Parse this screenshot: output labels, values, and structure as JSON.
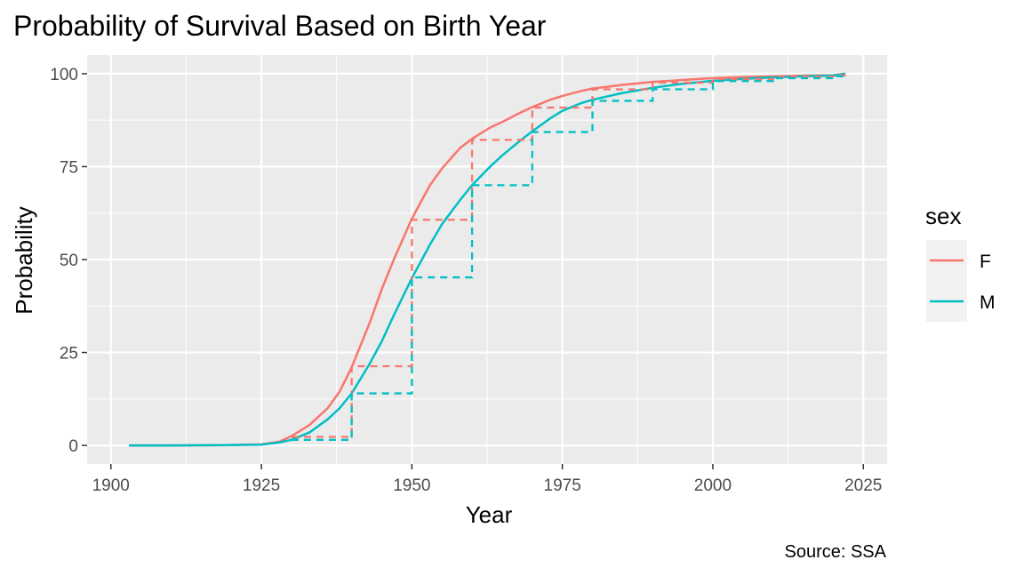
{
  "chart_data": {
    "type": "line",
    "title": "Probability of Survival Based on Birth Year",
    "xlabel": "Year",
    "ylabel": "Probability",
    "caption": "Source: SSA",
    "xlim": [
      1900,
      2025
    ],
    "ylim": [
      0,
      100
    ],
    "x_ticks": [
      1900,
      1925,
      1950,
      1975,
      2000,
      2025
    ],
    "y_ticks": [
      0,
      25,
      50,
      75,
      100
    ],
    "grid": true,
    "legend": {
      "title": "sex",
      "position": "right"
    },
    "series": [
      {
        "name": "F",
        "color": "#F8766D",
        "line": "solid",
        "x": [
          1903,
          1910,
          1920,
          1925,
          1928,
          1930,
          1933,
          1936,
          1938,
          1940,
          1943,
          1945,
          1947,
          1950,
          1953,
          1955,
          1958,
          1960,
          1963,
          1965,
          1968,
          1970,
          1973,
          1975,
          1978,
          1980,
          1985,
          1990,
          1995,
          2000,
          2005,
          2010,
          2015,
          2020,
          2022
        ],
        "y": [
          0,
          0,
          0.1,
          0.3,
          1.0,
          2.5,
          5.5,
          10.0,
          14.5,
          21.0,
          33.0,
          42.0,
          50.0,
          61.0,
          70.0,
          74.5,
          80.0,
          82.5,
          85.5,
          87.0,
          89.5,
          91.0,
          93.0,
          94.0,
          95.3,
          96.0,
          97.0,
          97.8,
          98.3,
          98.8,
          99.1,
          99.3,
          99.5,
          99.6,
          100
        ]
      },
      {
        "name": "M",
        "color": "#00BFC4",
        "line": "solid",
        "x": [
          1903,
          1910,
          1920,
          1925,
          1928,
          1930,
          1933,
          1936,
          1938,
          1940,
          1943,
          1945,
          1947,
          1950,
          1953,
          1955,
          1958,
          1960,
          1963,
          1965,
          1968,
          1970,
          1973,
          1975,
          1978,
          1980,
          1985,
          1990,
          1995,
          2000,
          2005,
          2010,
          2015,
          2020,
          2022
        ],
        "y": [
          0,
          0,
          0.1,
          0.2,
          0.8,
          1.5,
          3.5,
          7.0,
          10.0,
          14.0,
          22.0,
          28.0,
          35.0,
          45.0,
          54.0,
          59.5,
          66.0,
          70.0,
          75.0,
          78.0,
          82.0,
          84.5,
          88.0,
          90.0,
          92.0,
          93.0,
          94.8,
          96.2,
          97.3,
          98.1,
          98.6,
          99.0,
          99.3,
          99.5,
          100
        ]
      },
      {
        "name": "F",
        "color": "#F8766D",
        "line": "dashed-step",
        "x": [
          1930,
          1940,
          1950,
          1960,
          1970,
          1980,
          1990,
          2000,
          2010,
          2020,
          2022
        ],
        "y": [
          2.3,
          21.3,
          60.7,
          82.2,
          90.9,
          95.8,
          97.6,
          98.5,
          99.2,
          99.6,
          100
        ]
      },
      {
        "name": "M",
        "color": "#00BFC4",
        "line": "dashed-step",
        "x": [
          1930,
          1940,
          1950,
          1960,
          1970,
          1980,
          1990,
          2000,
          2010,
          2020,
          2022
        ],
        "y": [
          1.5,
          14.0,
          45.2,
          70.0,
          84.3,
          92.7,
          95.8,
          98.0,
          98.8,
          99.3,
          100
        ]
      }
    ]
  }
}
